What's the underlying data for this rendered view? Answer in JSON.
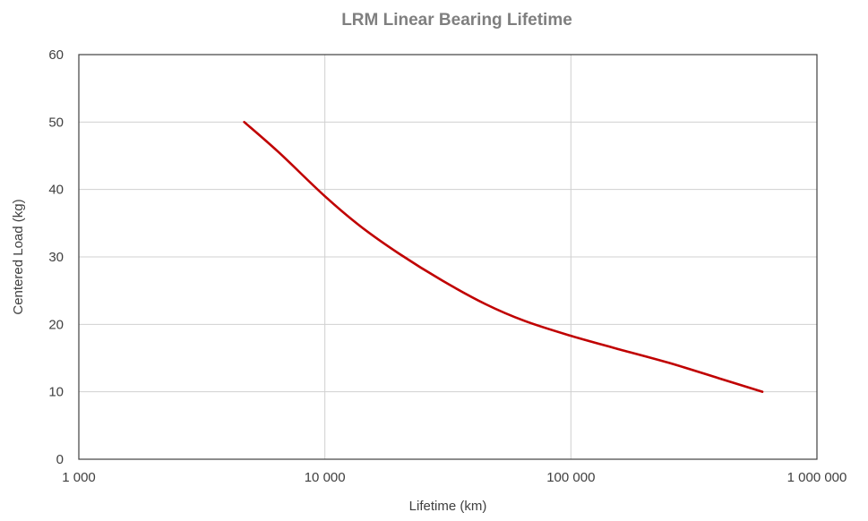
{
  "chart_data": {
    "type": "line",
    "title": "LRM Linear Bearing Lifetime",
    "xlabel": "Lifetime (km)",
    "ylabel": "Centered Load (kg)",
    "xscale": "log",
    "xlim": [
      1000,
      1000000
    ],
    "ylim": [
      0,
      60
    ],
    "xticks": [
      1000,
      10000,
      100000,
      1000000
    ],
    "xtick_labels": [
      "1 000",
      "10 000",
      "100 000",
      "1 000 000"
    ],
    "yticks": [
      0,
      10,
      20,
      30,
      40,
      50,
      60
    ],
    "ytick_labels": [
      "0",
      "10",
      "20",
      "30",
      "40",
      "50",
      "60"
    ],
    "grid": true,
    "legend": "none",
    "series": [
      {
        "color": "#c00000",
        "x": [
          4700,
          6500,
          10000,
          14000,
          20000,
          30000,
          45000,
          65000,
          100000,
          150000,
          250000,
          400000,
          600000
        ],
        "y": [
          50,
          45.5,
          39,
          34.5,
          30.5,
          26.5,
          23,
          20.5,
          18.3,
          16.5,
          14.3,
          12.0,
          10
        ]
      }
    ]
  }
}
